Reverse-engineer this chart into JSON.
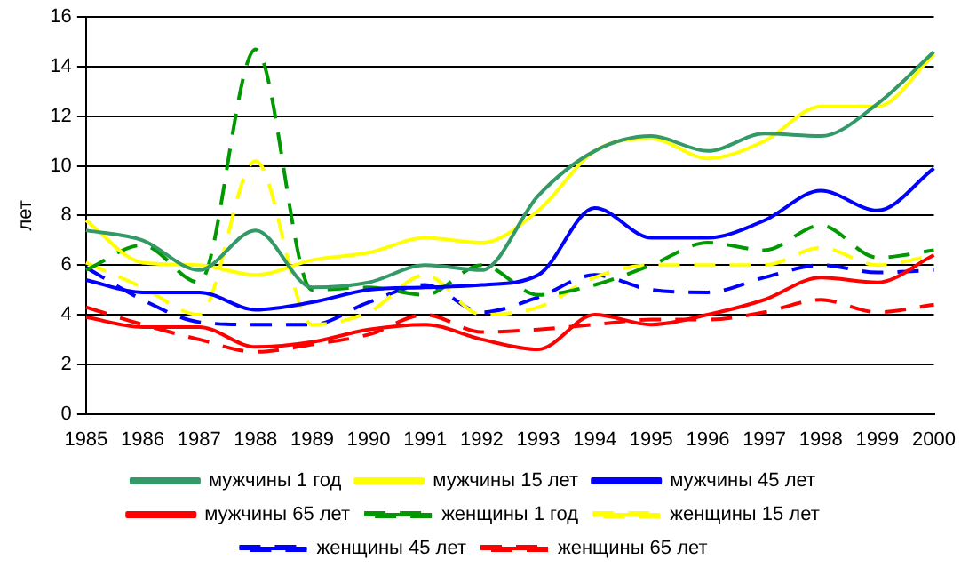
{
  "chart_data": {
    "type": "line",
    "ylabel": "лет",
    "categories": [
      "1985",
      "1986",
      "1987",
      "1988",
      "1989",
      "1990",
      "1991",
      "1992",
      "1993",
      "1994",
      "1995",
      "1996",
      "1997",
      "1998",
      "1999",
      "2000"
    ],
    "ylim": [
      0,
      16
    ],
    "yticks": [
      0,
      2,
      4,
      6,
      8,
      10,
      12,
      14,
      16
    ],
    "grid": "y",
    "legend": "bottom",
    "marker": "none",
    "series": [
      {
        "name": "мужчины 1 год",
        "color": "#339966",
        "line_style": "solid",
        "values": [
          7.4,
          7.0,
          5.8,
          7.4,
          5.1,
          5.3,
          6.0,
          5.8,
          8.8,
          10.6,
          11.2,
          10.6,
          11.3,
          11.2,
          12.5,
          14.6
        ]
      },
      {
        "name": "мужчины 15 лет",
        "color": "#ffff00",
        "line_style": "solid",
        "values": [
          7.8,
          6.1,
          6.0,
          5.6,
          6.2,
          6.5,
          7.1,
          6.9,
          8.2,
          10.6,
          11.1,
          10.3,
          11.0,
          12.4,
          12.4,
          14.5
        ]
      },
      {
        "name": "мужчины 45 лет",
        "color": "#0000ff",
        "line_style": "solid",
        "values": [
          5.4,
          4.9,
          4.9,
          4.2,
          4.5,
          5.0,
          5.1,
          5.2,
          5.6,
          8.3,
          7.1,
          7.1,
          7.8,
          9.0,
          8.2,
          9.9
        ]
      },
      {
        "name": "мужчины 65 лет",
        "color": "#ff0000",
        "line_style": "solid",
        "values": [
          3.9,
          3.5,
          3.5,
          2.7,
          2.9,
          3.4,
          3.6,
          3.0,
          2.6,
          4.0,
          3.6,
          4.0,
          4.6,
          5.5,
          5.3,
          6.4
        ]
      },
      {
        "name": "женщины 1 год",
        "color": "#009900",
        "line_style": "dashed",
        "values": [
          5.8,
          6.8,
          5.3,
          14.7,
          5.0,
          5.1,
          4.8,
          6.0,
          4.8,
          5.2,
          6.0,
          6.9,
          6.6,
          7.6,
          6.3,
          6.6
        ]
      },
      {
        "name": "женщины 15 лет",
        "color": "#ffff00",
        "line_style": "dashed",
        "values": [
          6.1,
          5.1,
          4.0,
          10.2,
          3.6,
          4.1,
          5.6,
          4.0,
          4.3,
          5.5,
          6.0,
          6.0,
          6.0,
          6.7,
          6.0,
          6.4
        ]
      },
      {
        "name": "женщины 45 лет",
        "color": "#0000ff",
        "line_style": "dashed",
        "values": [
          5.9,
          4.6,
          3.7,
          3.6,
          3.6,
          4.5,
          5.2,
          4.1,
          4.7,
          5.6,
          5.0,
          4.9,
          5.5,
          6.0,
          5.7,
          5.8
        ]
      },
      {
        "name": "женщины 65 лет",
        "color": "#ff0000",
        "line_style": "dashed",
        "values": [
          4.3,
          3.6,
          3.0,
          2.5,
          2.8,
          3.2,
          4.0,
          3.3,
          3.4,
          3.6,
          3.8,
          3.8,
          4.1,
          4.6,
          4.1,
          4.4
        ]
      }
    ]
  }
}
